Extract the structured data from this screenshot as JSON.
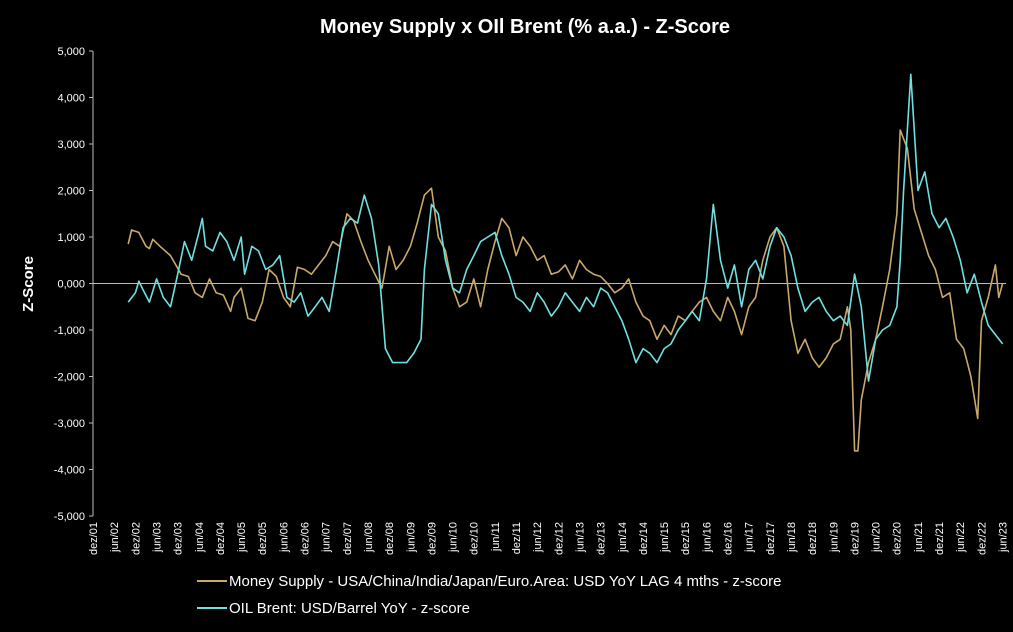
{
  "chart_data": {
    "type": "line",
    "title": "Money Supply x OIl Brent (% a.a.) - Z-Score",
    "ylabel": "Z-Score",
    "xlabel": "",
    "ylim": [
      -5,
      5
    ],
    "y_ticks": [
      5,
      4,
      3,
      2,
      1,
      0,
      -1,
      -2,
      -3,
      -4,
      -5
    ],
    "y_tick_labels": [
      "5,000",
      "4,000",
      "3,000",
      "2,000",
      "1,000",
      "0,000",
      "-1,000",
      "-2,000",
      "-3,000",
      "-4,000",
      "-5,000"
    ],
    "x_range": [
      2001.917,
      2023.5
    ],
    "x_ticks": [
      2001.917,
      2002.417,
      2002.917,
      2003.417,
      2003.917,
      2004.417,
      2004.917,
      2005.417,
      2005.917,
      2006.417,
      2006.917,
      2007.417,
      2007.917,
      2008.417,
      2008.917,
      2009.417,
      2009.917,
      2010.417,
      2010.917,
      2011.417,
      2011.917,
      2012.417,
      2012.917,
      2013.417,
      2013.917,
      2014.417,
      2014.917,
      2015.417,
      2015.917,
      2016.417,
      2016.917,
      2017.417,
      2017.917,
      2018.417,
      2018.917,
      2019.417,
      2019.917,
      2020.417,
      2020.917,
      2021.417,
      2021.917,
      2022.417,
      2022.917,
      2023.417
    ],
    "x_tick_labels": [
      "dez/01",
      "jun/02",
      "dez/02",
      "jun/03",
      "dez/03",
      "jun/04",
      "dez/04",
      "jun/05",
      "dez/05",
      "jun/06",
      "dez/06",
      "jun/07",
      "dez/07",
      "jun/08",
      "dez/08",
      "jun/09",
      "dez/09",
      "jun/10",
      "dez/10",
      "jun/11",
      "dez/11",
      "jun/12",
      "dez/12",
      "jun/13",
      "dez/13",
      "jun/14",
      "dez/14",
      "jun/15",
      "dez/15",
      "jun/16",
      "dez/16",
      "jun/17",
      "dez/17",
      "jun/18",
      "dez/18",
      "jun/19",
      "dez/19",
      "jun/20",
      "dez/20",
      "jun/21",
      "dez/21",
      "jun/22",
      "dez/22",
      "jun/23"
    ],
    "legend_position": "bottom",
    "series": [
      {
        "name": "Money Supply - USA/China/India/Japan/Euro.Area: USD YoY LAG 4 mths - z-score",
        "color": "#c9a869",
        "x": [
          2002.75,
          2002.83,
          2003.0,
          2003.17,
          2003.25,
          2003.33,
          2003.5,
          2003.75,
          2004.0,
          2004.17,
          2004.33,
          2004.5,
          2004.67,
          2004.83,
          2005.0,
          2005.17,
          2005.25,
          2005.42,
          2005.58,
          2005.75,
          2005.92,
          2006.08,
          2006.25,
          2006.42,
          2006.58,
          2006.75,
          2006.92,
          2007.08,
          2007.25,
          2007.42,
          2007.58,
          2007.75,
          2007.92,
          2008.08,
          2008.25,
          2008.42,
          2008.58,
          2008.75,
          2008.92,
          2009.08,
          2009.25,
          2009.42,
          2009.58,
          2009.75,
          2009.92,
          2010.08,
          2010.25,
          2010.42,
          2010.5,
          2010.58,
          2010.75,
          2010.92,
          2011.08,
          2011.25,
          2011.42,
          2011.58,
          2011.75,
          2011.92,
          2012.08,
          2012.25,
          2012.42,
          2012.58,
          2012.75,
          2012.92,
          2013.08,
          2013.25,
          2013.42,
          2013.58,
          2013.75,
          2013.92,
          2014.08,
          2014.25,
          2014.42,
          2014.58,
          2014.75,
          2014.92,
          2015.08,
          2015.25,
          2015.42,
          2015.58,
          2015.75,
          2015.92,
          2016.08,
          2016.25,
          2016.42,
          2016.58,
          2016.75,
          2016.92,
          2017.08,
          2017.25,
          2017.42,
          2017.58,
          2017.75,
          2017.92,
          2018.08,
          2018.25,
          2018.42,
          2018.58,
          2018.75,
          2018.92,
          2019.08,
          2019.25,
          2019.42,
          2019.58,
          2019.75,
          2019.83,
          2019.92,
          2020.0,
          2020.08,
          2020.25,
          2020.42,
          2020.58,
          2020.75,
          2020.92,
          2021.0,
          2021.17,
          2021.33,
          2021.5,
          2021.67,
          2021.83,
          2022.0,
          2022.17,
          2022.33,
          2022.5,
          2022.67,
          2022.83,
          2022.92,
          2023.08,
          2023.25,
          2023.33,
          2023.42
        ],
        "values": [
          0.85,
          1.15,
          1.1,
          0.8,
          0.75,
          0.95,
          0.8,
          0.6,
          0.2,
          0.15,
          -0.2,
          -0.3,
          0.1,
          -0.2,
          -0.25,
          -0.6,
          -0.3,
          -0.1,
          -0.75,
          -0.8,
          -0.4,
          0.3,
          0.15,
          -0.3,
          -0.5,
          0.35,
          0.3,
          0.2,
          0.4,
          0.6,
          0.9,
          0.8,
          1.5,
          1.35,
          0.9,
          0.5,
          0.2,
          -0.1,
          0.8,
          0.3,
          0.5,
          0.8,
          1.3,
          1.9,
          2.05,
          1.0,
          0.7,
          -0.1,
          -0.3,
          -0.5,
          -0.4,
          0.1,
          -0.5,
          0.3,
          0.9,
          1.4,
          1.2,
          0.6,
          1.0,
          0.8,
          0.5,
          0.6,
          0.2,
          0.25,
          0.4,
          0.1,
          0.5,
          0.3,
          0.2,
          0.15,
          0.0,
          -0.2,
          -0.1,
          0.1,
          -0.4,
          -0.7,
          -0.8,
          -1.2,
          -0.9,
          -1.1,
          -0.7,
          -0.8,
          -0.6,
          -0.4,
          -0.3,
          -0.6,
          -0.8,
          -0.3,
          -0.6,
          -1.1,
          -0.5,
          -0.3,
          0.5,
          1.0,
          1.2,
          0.8,
          -0.8,
          -1.5,
          -1.2,
          -1.6,
          -1.8,
          -1.6,
          -1.3,
          -1.2,
          -0.5,
          -1.0,
          -3.6,
          -3.6,
          -2.5,
          -1.7,
          -1.2,
          -0.5,
          0.3,
          1.5,
          3.3,
          2.9,
          1.6,
          1.1,
          0.6,
          0.3,
          -0.3,
          -0.2,
          -1.2,
          -1.4,
          -2.0,
          -2.9,
          -0.8,
          -0.3,
          0.4,
          -0.3,
          0.0
        ]
      },
      {
        "name": "OIL Brent: USD/Barrel YoY - z-score",
        "color": "#6fe0e0",
        "x": [
          2002.75,
          2002.92,
          2003.0,
          2003.08,
          2003.25,
          2003.42,
          2003.58,
          2003.75,
          2003.92,
          2004.08,
          2004.25,
          2004.42,
          2004.5,
          2004.58,
          2004.75,
          2004.92,
          2005.08,
          2005.25,
          2005.42,
          2005.5,
          2005.67,
          2005.83,
          2006.0,
          2006.17,
          2006.33,
          2006.5,
          2006.67,
          2006.83,
          2007.0,
          2007.17,
          2007.33,
          2007.5,
          2007.67,
          2007.83,
          2008.0,
          2008.17,
          2008.33,
          2008.5,
          2008.67,
          2008.83,
          2009.0,
          2009.17,
          2009.33,
          2009.5,
          2009.67,
          2009.75,
          2009.92,
          2010.08,
          2010.25,
          2010.42,
          2010.58,
          2010.75,
          2010.92,
          2011.08,
          2011.25,
          2011.42,
          2011.58,
          2011.75,
          2011.92,
          2012.08,
          2012.25,
          2012.42,
          2012.58,
          2012.75,
          2012.92,
          2013.08,
          2013.25,
          2013.42,
          2013.58,
          2013.75,
          2013.92,
          2014.08,
          2014.25,
          2014.42,
          2014.58,
          2014.75,
          2014.92,
          2015.08,
          2015.25,
          2015.42,
          2015.58,
          2015.75,
          2015.92,
          2016.08,
          2016.25,
          2016.42,
          2016.58,
          2016.75,
          2016.92,
          2017.08,
          2017.25,
          2017.42,
          2017.58,
          2017.75,
          2017.92,
          2018.08,
          2018.25,
          2018.42,
          2018.58,
          2018.75,
          2018.92,
          2019.08,
          2019.25,
          2019.42,
          2019.58,
          2019.75,
          2019.92,
          2020.08,
          2020.25,
          2020.42,
          2020.58,
          2020.75,
          2020.92,
          2021.0,
          2021.08,
          2021.25,
          2021.42,
          2021.58,
          2021.75,
          2021.92,
          2022.08,
          2022.25,
          2022.42,
          2022.58,
          2022.75,
          2022.92,
          2023.08,
          2023.25,
          2023.42
        ],
        "values": [
          -0.4,
          -0.2,
          0.05,
          -0.1,
          -0.4,
          0.1,
          -0.3,
          -0.5,
          0.2,
          0.9,
          0.5,
          1.1,
          1.4,
          0.8,
          0.7,
          1.1,
          0.9,
          0.5,
          1.0,
          0.2,
          0.8,
          0.7,
          0.3,
          0.4,
          0.6,
          -0.3,
          -0.4,
          -0.2,
          -0.7,
          -0.5,
          -0.3,
          -0.6,
          0.3,
          1.2,
          1.4,
          1.3,
          1.9,
          1.4,
          0.4,
          -1.4,
          -1.7,
          -1.7,
          -1.7,
          -1.5,
          -1.2,
          0.3,
          1.7,
          1.5,
          0.5,
          -0.1,
          -0.2,
          0.3,
          0.6,
          0.9,
          1.0,
          1.1,
          0.6,
          0.2,
          -0.3,
          -0.4,
          -0.6,
          -0.2,
          -0.4,
          -0.7,
          -0.5,
          -0.2,
          -0.4,
          -0.6,
          -0.3,
          -0.5,
          -0.1,
          -0.2,
          -0.5,
          -0.8,
          -1.2,
          -1.7,
          -1.4,
          -1.5,
          -1.7,
          -1.4,
          -1.3,
          -1.0,
          -0.8,
          -0.6,
          -0.8,
          0.1,
          1.7,
          0.5,
          -0.1,
          0.4,
          -0.5,
          0.3,
          0.5,
          0.1,
          0.8,
          1.2,
          1.0,
          0.6,
          -0.1,
          -0.6,
          -0.4,
          -0.3,
          -0.6,
          -0.8,
          -0.7,
          -0.9,
          0.2,
          -0.5,
          -2.1,
          -1.2,
          -1.0,
          -0.9,
          -0.5,
          0.5,
          2.0,
          4.5,
          2.0,
          2.4,
          1.5,
          1.2,
          1.4,
          1.0,
          0.5,
          -0.2,
          0.2,
          -0.4,
          -0.9,
          -1.1,
          -1.3
        ]
      }
    ]
  }
}
